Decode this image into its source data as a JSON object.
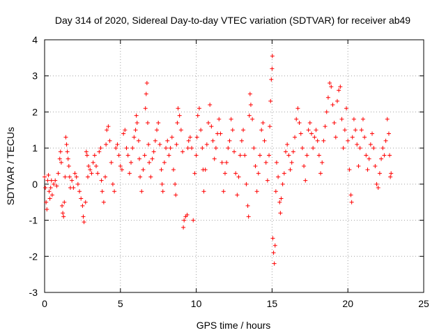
{
  "chart_data": {
    "type": "scatter",
    "title": "Day 314 of 2020, Sidereal Day-to-day VTEC variation (SDTVAR) for receiver ab49",
    "xlabel": "GPS time / hours",
    "ylabel": "SDTVAR / TECUs",
    "xlim": [
      0,
      25
    ],
    "ylim": [
      -3,
      4
    ],
    "xticks": [
      "0",
      "5",
      "10",
      "15",
      "20",
      "25"
    ],
    "yticks": [
      "-3",
      "-2",
      "-1",
      "0",
      "1",
      "2",
      "3",
      "4"
    ],
    "grid": true,
    "marker": "+",
    "color": "#ff0000",
    "series": [
      {
        "name": "SDTVAR",
        "points": [
          [
            0.0,
            0.2
          ],
          [
            0.05,
            -0.1
          ],
          [
            0.1,
            -0.5
          ],
          [
            0.15,
            -0.7
          ],
          [
            0.2,
            0.1
          ],
          [
            0.25,
            0.25
          ],
          [
            0.3,
            -0.2
          ],
          [
            0.35,
            -0.4
          ],
          [
            0.4,
            -0.1
          ],
          [
            0.45,
            0.1
          ],
          [
            0.5,
            -0.3
          ],
          [
            0.6,
            0.0
          ],
          [
            0.7,
            0.1
          ],
          [
            0.8,
            -0.05
          ],
          [
            0.9,
            0.3
          ],
          [
            1.0,
            0.7
          ],
          [
            1.05,
            0.9
          ],
          [
            1.1,
            0.6
          ],
          [
            1.15,
            -0.6
          ],
          [
            1.2,
            -0.8
          ],
          [
            1.25,
            -0.9
          ],
          [
            1.3,
            -0.5
          ],
          [
            1.35,
            0.2
          ],
          [
            1.4,
            1.3
          ],
          [
            1.45,
            1.1
          ],
          [
            1.5,
            0.9
          ],
          [
            1.55,
            0.7
          ],
          [
            1.6,
            0.5
          ],
          [
            1.65,
            0.2
          ],
          [
            1.7,
            -0.1
          ],
          [
            1.8,
            0.1
          ],
          [
            1.9,
            -0.1
          ],
          [
            2.0,
            0.3
          ],
          [
            2.1,
            0.2
          ],
          [
            2.2,
            0.0
          ],
          [
            2.3,
            -0.2
          ],
          [
            2.4,
            -0.4
          ],
          [
            2.5,
            -0.6
          ],
          [
            2.55,
            -0.9
          ],
          [
            2.6,
            -1.05
          ],
          [
            2.7,
            -0.5
          ],
          [
            2.75,
            0.9
          ],
          [
            2.8,
            0.8
          ],
          [
            2.85,
            0.2
          ],
          [
            2.9,
            0.5
          ],
          [
            3.0,
            0.4
          ],
          [
            3.1,
            0.3
          ],
          [
            3.2,
            0.6
          ],
          [
            3.3,
            0.8
          ],
          [
            3.4,
            0.5
          ],
          [
            3.5,
            0.3
          ],
          [
            3.6,
            0.9
          ],
          [
            3.7,
            1.0
          ],
          [
            3.75,
            0.1
          ],
          [
            3.8,
            -0.2
          ],
          [
            3.9,
            -0.5
          ],
          [
            4.0,
            0.2
          ],
          [
            4.05,
            1.1
          ],
          [
            4.1,
            1.5
          ],
          [
            4.2,
            1.6
          ],
          [
            4.3,
            1.2
          ],
          [
            4.4,
            0.6
          ],
          [
            4.5,
            0.0
          ],
          [
            4.6,
            -0.2
          ],
          [
            4.7,
            1.0
          ],
          [
            4.8,
            1.1
          ],
          [
            4.9,
            0.8
          ],
          [
            5.0,
            0.5
          ],
          [
            5.1,
            0.4
          ],
          [
            5.2,
            1.4
          ],
          [
            5.3,
            1.5
          ],
          [
            5.4,
            1.0
          ],
          [
            5.5,
            0.8
          ],
          [
            5.6,
            0.3
          ],
          [
            5.7,
            0.6
          ],
          [
            5.8,
            1.0
          ],
          [
            5.9,
            1.3
          ],
          [
            6.0,
            1.5
          ],
          [
            6.05,
            1.9
          ],
          [
            6.1,
            1.7
          ],
          [
            6.2,
            1.2
          ],
          [
            6.25,
            0.7
          ],
          [
            6.3,
            0.2
          ],
          [
            6.4,
            -0.2
          ],
          [
            6.5,
            0.4
          ],
          [
            6.6,
            0.8
          ],
          [
            6.65,
            2.1
          ],
          [
            6.7,
            2.5
          ],
          [
            6.75,
            2.8
          ],
          [
            6.8,
            1.7
          ],
          [
            6.85,
            1.1
          ],
          [
            6.9,
            0.6
          ],
          [
            7.0,
            0.2
          ],
          [
            7.1,
            0.7
          ],
          [
            7.2,
            0.9
          ],
          [
            7.3,
            1.2
          ],
          [
            7.4,
            1.5
          ],
          [
            7.5,
            1.7
          ],
          [
            7.6,
            1.1
          ],
          [
            7.7,
            0.4
          ],
          [
            7.75,
            0.0
          ],
          [
            7.8,
            -0.2
          ],
          [
            7.9,
            0.6
          ],
          [
            8.0,
            1.0
          ],
          [
            8.1,
            1.2
          ],
          [
            8.2,
            0.8
          ],
          [
            8.3,
            1.0
          ],
          [
            8.4,
            1.3
          ],
          [
            8.5,
            0.4
          ],
          [
            8.6,
            0.0
          ],
          [
            8.65,
            -0.3
          ],
          [
            8.7,
            1.1
          ],
          [
            8.75,
            1.7
          ],
          [
            8.8,
            2.1
          ],
          [
            8.9,
            1.9
          ],
          [
            9.0,
            1.5
          ],
          [
            9.1,
            0.9
          ],
          [
            9.15,
            -1.2
          ],
          [
            9.2,
            -1.0
          ],
          [
            9.3,
            -0.9
          ],
          [
            9.4,
            -0.85
          ],
          [
            9.45,
            1.0
          ],
          [
            9.5,
            1.2
          ],
          [
            9.6,
            1.3
          ],
          [
            9.7,
            1.0
          ],
          [
            9.8,
            -1.0
          ],
          [
            9.9,
            0.3
          ],
          [
            10.0,
            0.8
          ],
          [
            10.05,
            1.3
          ],
          [
            10.1,
            1.9
          ],
          [
            10.2,
            2.1
          ],
          [
            10.3,
            1.5
          ],
          [
            10.4,
            1.0
          ],
          [
            10.45,
            0.4
          ],
          [
            10.5,
            -0.2
          ],
          [
            10.6,
            0.4
          ],
          [
            10.7,
            1.1
          ],
          [
            10.8,
            1.7
          ],
          [
            10.9,
            2.2
          ],
          [
            11.0,
            1.6
          ],
          [
            11.1,
            1.2
          ],
          [
            11.2,
            0.7
          ],
          [
            11.3,
            1.0
          ],
          [
            11.4,
            1.4
          ],
          [
            11.5,
            1.8
          ],
          [
            11.6,
            1.4
          ],
          [
            11.7,
            0.6
          ],
          [
            11.8,
            -0.2
          ],
          [
            11.9,
            0.3
          ],
          [
            12.0,
            0.6
          ],
          [
            12.1,
            1.0
          ],
          [
            12.2,
            1.2
          ],
          [
            12.3,
            1.8
          ],
          [
            12.4,
            1.5
          ],
          [
            12.5,
            0.9
          ],
          [
            12.6,
            0.3
          ],
          [
            12.7,
            -0.3
          ],
          [
            12.8,
            0.2
          ],
          [
            12.9,
            0.8
          ],
          [
            13.0,
            1.2
          ],
          [
            13.1,
            1.5
          ],
          [
            13.2,
            0.8
          ],
          [
            13.3,
            0.0
          ],
          [
            13.4,
            -0.6
          ],
          [
            13.45,
            -0.9
          ],
          [
            13.5,
            1.9
          ],
          [
            13.55,
            2.5
          ],
          [
            13.6,
            2.2
          ],
          [
            13.7,
            1.8
          ],
          [
            13.8,
            1.0
          ],
          [
            13.9,
            0.5
          ],
          [
            14.0,
            -0.2
          ],
          [
            14.1,
            0.3
          ],
          [
            14.2,
            0.8
          ],
          [
            14.3,
            1.5
          ],
          [
            14.4,
            1.7
          ],
          [
            14.5,
            1.2
          ],
          [
            14.6,
            0.6
          ],
          [
            14.7,
            0.1
          ],
          [
            14.8,
            0.8
          ],
          [
            14.85,
            1.6
          ],
          [
            14.9,
            2.3
          ],
          [
            14.95,
            2.9
          ],
          [
            15.0,
            3.2
          ],
          [
            15.02,
            3.55
          ],
          [
            15.05,
            -1.5
          ],
          [
            15.1,
            -1.9
          ],
          [
            15.15,
            -2.2
          ],
          [
            15.2,
            -1.7
          ],
          [
            15.25,
            -0.2
          ],
          [
            15.3,
            0.6
          ],
          [
            15.4,
            0.2
          ],
          [
            15.5,
            -0.5
          ],
          [
            15.55,
            -0.8
          ],
          [
            15.6,
            -0.4
          ],
          [
            15.7,
            0.0
          ],
          [
            15.8,
            0.3
          ],
          [
            15.9,
            0.9
          ],
          [
            16.0,
            1.1
          ],
          [
            16.1,
            0.8
          ],
          [
            16.2,
            0.4
          ],
          [
            16.3,
            0.6
          ],
          [
            16.4,
            0.9
          ],
          [
            16.5,
            1.3
          ],
          [
            16.6,
            1.8
          ],
          [
            16.7,
            2.1
          ],
          [
            16.8,
            1.7
          ],
          [
            16.9,
            1.4
          ],
          [
            17.0,
            1.0
          ],
          [
            17.1,
            0.5
          ],
          [
            17.2,
            0.1
          ],
          [
            17.3,
            0.8
          ],
          [
            17.4,
            1.5
          ],
          [
            17.5,
            1.7
          ],
          [
            17.6,
            1.4
          ],
          [
            17.7,
            1.0
          ],
          [
            17.8,
            1.3
          ],
          [
            17.9,
            1.5
          ],
          [
            18.0,
            1.2
          ],
          [
            18.1,
            0.8
          ],
          [
            18.2,
            0.3
          ],
          [
            18.3,
            0.6
          ],
          [
            18.4,
            1.2
          ],
          [
            18.5,
            1.6
          ],
          [
            18.6,
            2.0
          ],
          [
            18.7,
            2.4
          ],
          [
            18.8,
            2.8
          ],
          [
            18.9,
            2.7
          ],
          [
            19.0,
            2.2
          ],
          [
            19.1,
            1.7
          ],
          [
            19.2,
            1.3
          ],
          [
            19.3,
            2.3
          ],
          [
            19.4,
            2.6
          ],
          [
            19.5,
            2.7
          ],
          [
            19.6,
            1.8
          ],
          [
            19.7,
            1.0
          ],
          [
            19.8,
            1.5
          ],
          [
            19.9,
            2.1
          ],
          [
            20.0,
            1.2
          ],
          [
            20.1,
            0.4
          ],
          [
            20.2,
            -0.3
          ],
          [
            20.25,
            -0.5
          ],
          [
            20.3,
            1.3
          ],
          [
            20.4,
            1.8
          ],
          [
            20.5,
            1.5
          ],
          [
            20.6,
            1.1
          ],
          [
            20.7,
            0.5
          ],
          [
            20.8,
            1.0
          ],
          [
            20.9,
            1.5
          ],
          [
            21.0,
            1.8
          ],
          [
            21.1,
            1.3
          ],
          [
            21.2,
            0.8
          ],
          [
            21.3,
            0.4
          ],
          [
            21.4,
            0.7
          ],
          [
            21.5,
            1.1
          ],
          [
            21.6,
            1.4
          ],
          [
            21.7,
            1.0
          ],
          [
            21.8,
            0.5
          ],
          [
            21.9,
            0.0
          ],
          [
            22.0,
            -0.1
          ],
          [
            22.1,
            0.3
          ],
          [
            22.2,
            0.7
          ],
          [
            22.3,
            1.0
          ],
          [
            22.4,
            0.8
          ],
          [
            22.5,
            1.2
          ],
          [
            22.6,
            1.8
          ],
          [
            22.7,
            1.4
          ],
          [
            22.75,
            0.8
          ],
          [
            22.8,
            0.2
          ],
          [
            22.85,
            0.3
          ]
        ]
      }
    ]
  }
}
